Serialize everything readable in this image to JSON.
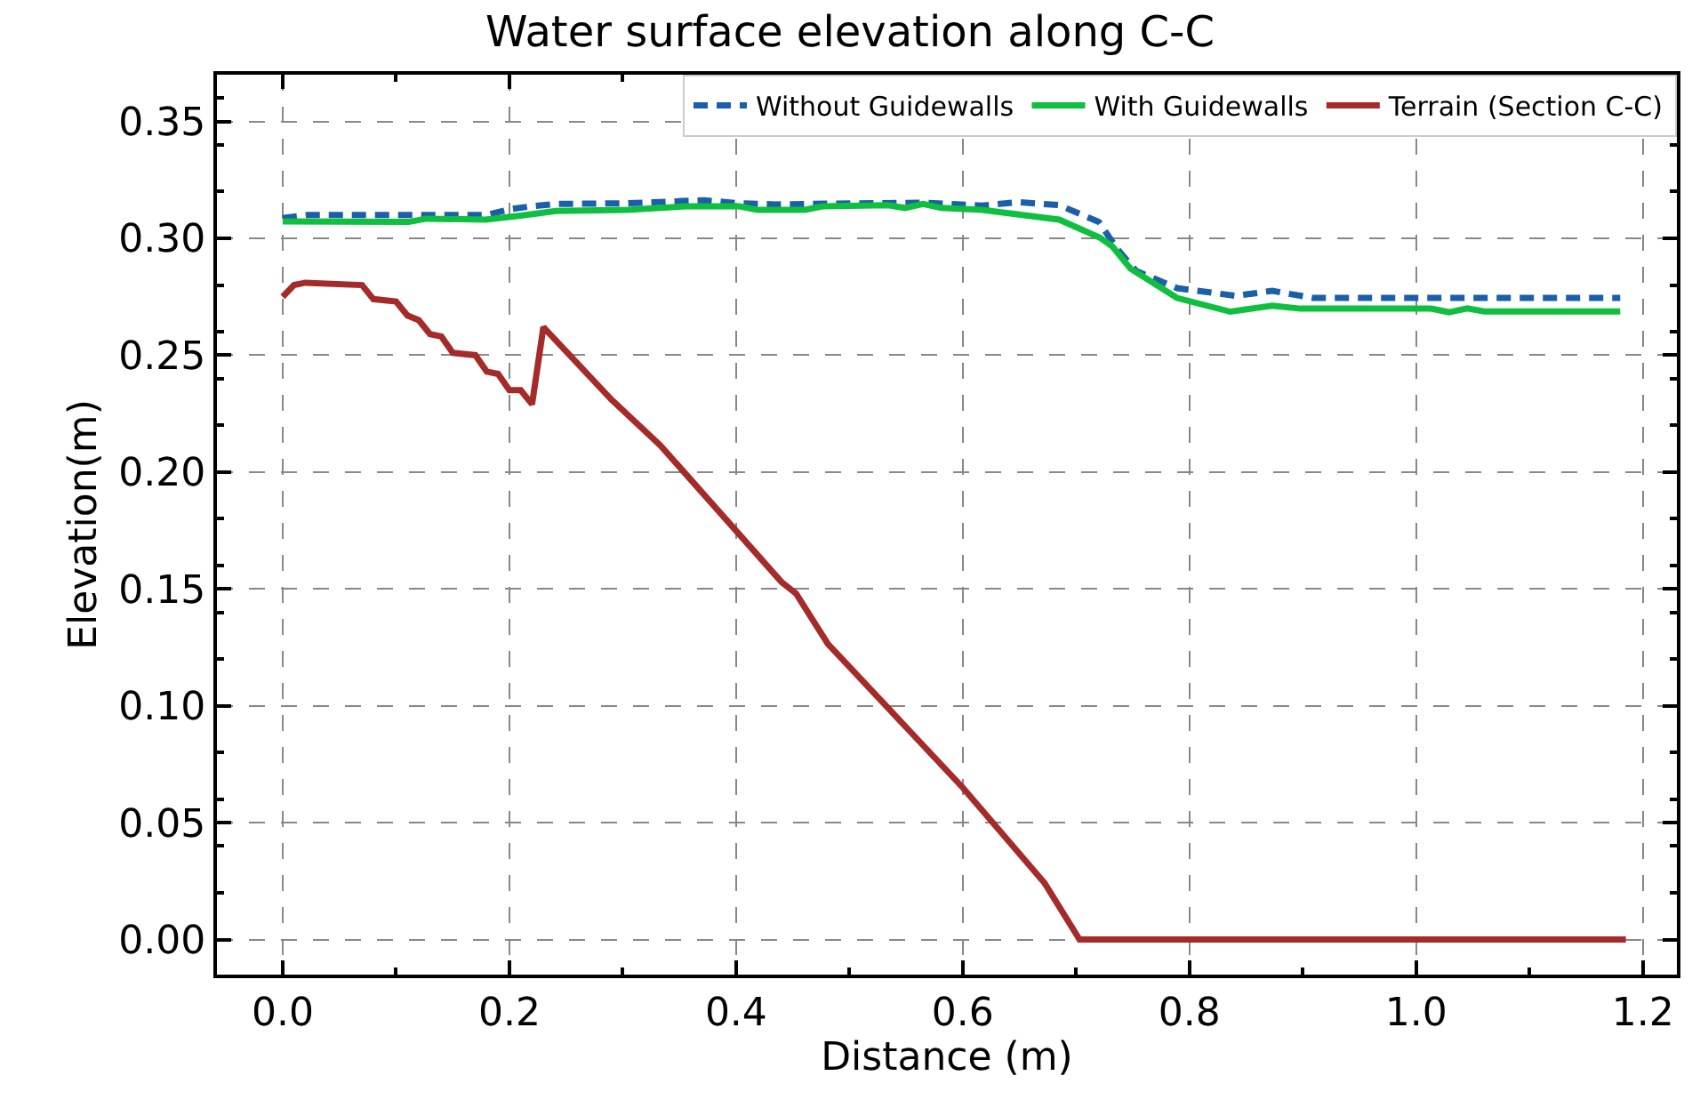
{
  "chart_data": {
    "type": "line",
    "title": "Water surface elevation along C-C",
    "xlabel": "Distance (m)",
    "ylabel": "Elevation(m)",
    "xlim": [
      -0.058,
      1.23
    ],
    "ylim": [
      -0.015,
      0.37
    ],
    "xticks": [
      {
        "value": 0,
        "label": "0.0"
      },
      {
        "value": 0.2,
        "label": "0.2"
      },
      {
        "value": 0.4,
        "label": "0.4"
      },
      {
        "value": 0.6,
        "label": "0.6"
      },
      {
        "value": 0.8,
        "label": "0.8"
      },
      {
        "value": 1.0,
        "label": "1.0"
      },
      {
        "value": 1.2,
        "label": "1.2"
      }
    ],
    "yticks": [
      {
        "value": 0,
        "label": "0.00"
      },
      {
        "value": 0.05,
        "label": "0.05"
      },
      {
        "value": 0.1,
        "label": "0.10"
      },
      {
        "value": 0.15,
        "label": "0.15"
      },
      {
        "value": 0.2,
        "label": "0.20"
      },
      {
        "value": 0.25,
        "label": "0.25"
      },
      {
        "value": 0.3,
        "label": "0.30"
      },
      {
        "value": 0.35,
        "label": "0.35"
      }
    ],
    "grid": true,
    "legend": "top right",
    "marker": "none",
    "series": [
      {
        "name": "Without Guidewalls",
        "color": "#1a5fa8",
        "line_style": "dashed",
        "x": [
          0,
          0.022,
          0.18,
          0.2,
          0.219,
          0.241,
          0.304,
          0.372,
          0.403,
          0.435,
          0.461,
          0.565,
          0.617,
          0.649,
          0.685,
          0.72,
          0.737,
          0.753,
          0.789,
          0.841,
          0.873,
          0.909,
          1.18
        ],
        "values": [
          0.3087,
          0.31,
          0.31,
          0.3124,
          0.3137,
          0.3147,
          0.315,
          0.3163,
          0.315,
          0.3145,
          0.3147,
          0.3152,
          0.314,
          0.3155,
          0.3142,
          0.307,
          0.295,
          0.286,
          0.2787,
          0.2754,
          0.2775,
          0.2745,
          0.2745
        ]
      },
      {
        "name": "With Guidewalls",
        "color": "#0fbf3f",
        "line_style": "solid",
        "x": [
          0,
          0.111,
          0.127,
          0.179,
          0.21,
          0.241,
          0.304,
          0.356,
          0.403,
          0.419,
          0.461,
          0.476,
          0.534,
          0.549,
          0.565,
          0.581,
          0.617,
          0.685,
          0.721,
          0.732,
          0.748,
          0.789,
          0.836,
          0.873,
          0.898,
          1.013,
          1.029,
          1.045,
          1.06,
          1.18
        ],
        "values": [
          0.3072,
          0.307,
          0.3084,
          0.308,
          0.3097,
          0.3117,
          0.3122,
          0.3137,
          0.3137,
          0.3122,
          0.3122,
          0.3137,
          0.3142,
          0.313,
          0.3147,
          0.313,
          0.3122,
          0.308,
          0.3003,
          0.2965,
          0.287,
          0.2745,
          0.2686,
          0.2712,
          0.2699,
          0.2699,
          0.2684,
          0.27,
          0.2687,
          0.2687
        ]
      },
      {
        "name": "Terrain (Section C-C)",
        "color": "#a52a2a",
        "line_style": "solid",
        "x": [
          0,
          0.01,
          0.02,
          0.07,
          0.08,
          0.1,
          0.11,
          0.12,
          0.13,
          0.14,
          0.15,
          0.17,
          0.18,
          0.19,
          0.2,
          0.21,
          0.22,
          0.23,
          0.29,
          0.333,
          0.44,
          0.453,
          0.481,
          0.6,
          0.672,
          0.703,
          1.185
        ],
        "values": [
          0.275,
          0.28,
          0.281,
          0.28,
          0.274,
          0.273,
          0.267,
          0.265,
          0.259,
          0.258,
          0.251,
          0.25,
          0.243,
          0.242,
          0.235,
          0.235,
          0.229,
          0.262,
          0.231,
          0.2115,
          0.153,
          0.148,
          0.1265,
          0.065,
          0.0243,
          0,
          0
        ]
      }
    ]
  }
}
